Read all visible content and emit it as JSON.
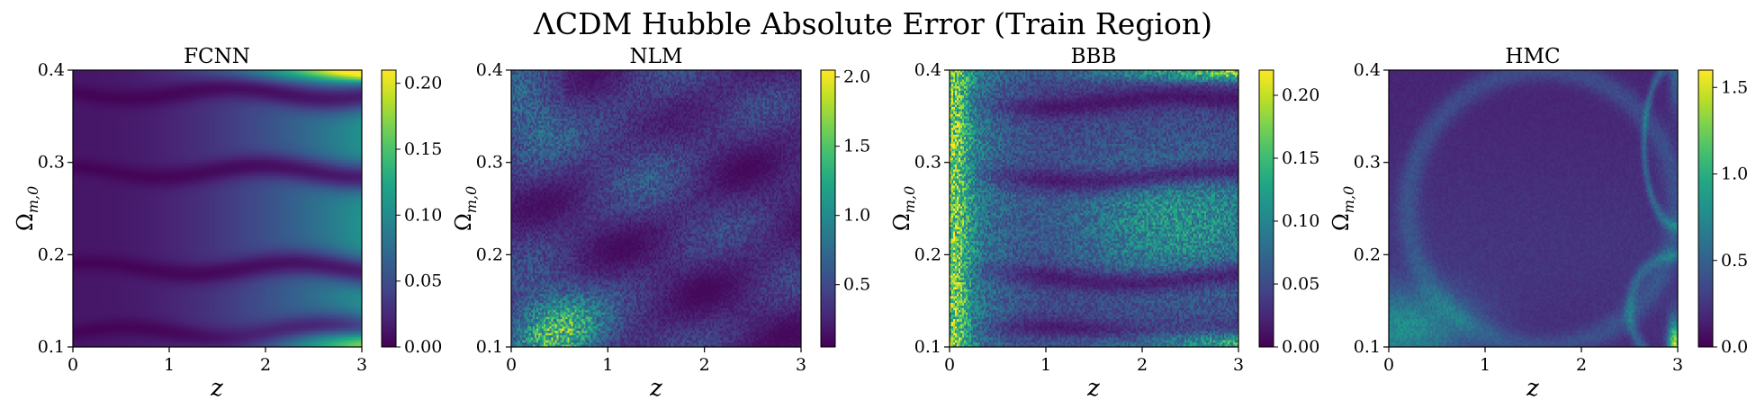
{
  "figure": {
    "title": "ΛCDM Hubble Absolute Error (Train Region)"
  },
  "colors": {
    "viridis": [
      "#440154",
      "#482475",
      "#414487",
      "#355f8d",
      "#2a788e",
      "#21918c",
      "#22a884",
      "#44bf70",
      "#7ad151",
      "#bddf26",
      "#fde725"
    ]
  },
  "chart_data": [
    {
      "type": "heatmap",
      "title": "FCNN",
      "xlabel": "z",
      "ylabel": "Ω_{m,0}",
      "xlim": [
        0,
        3
      ],
      "ylim": [
        0.1,
        0.4
      ],
      "x_ticks": [
        "0",
        "1",
        "2",
        "3"
      ],
      "y_ticks": [
        "0.1",
        "0.2",
        "0.3",
        "0.4"
      ],
      "colorbar": {
        "min": 0.0,
        "max": 0.21,
        "ticks": [
          "0.00",
          "0.05",
          "0.10",
          "0.15",
          "0.20"
        ],
        "tick_values": [
          0.0,
          0.05,
          0.1,
          0.15,
          0.2
        ]
      },
      "pattern": "smooth",
      "error_max_approx": 0.21,
      "dark_bands_omega": [
        0.115,
        0.185,
        0.29,
        0.375
      ]
    },
    {
      "type": "heatmap",
      "title": "NLM",
      "xlabel": "z",
      "ylabel": "Ω_{m,0}",
      "xlim": [
        0,
        3
      ],
      "ylim": [
        0.1,
        0.4
      ],
      "x_ticks": [
        "0",
        "1",
        "2",
        "3"
      ],
      "y_ticks": [
        "0.1",
        "0.2",
        "0.3",
        "0.4"
      ],
      "colorbar": {
        "min": 0.05,
        "max": 2.05,
        "ticks": [
          "0.5",
          "1.0",
          "1.5",
          "2.0"
        ],
        "tick_values": [
          0.5,
          1.0,
          1.5,
          2.0
        ]
      },
      "pattern": "noisy",
      "error_max_approx": 2.05,
      "hotspot": {
        "z": 0.5,
        "omega": 0.12
      }
    },
    {
      "type": "heatmap",
      "title": "BBB",
      "xlabel": "z",
      "ylabel": "Ω_{m,0}",
      "xlim": [
        0,
        3
      ],
      "ylim": [
        0.1,
        0.4
      ],
      "x_ticks": [
        "0",
        "1",
        "2",
        "3"
      ],
      "y_ticks": [
        "0.1",
        "0.2",
        "0.3",
        "0.4"
      ],
      "colorbar": {
        "min": 0.0,
        "max": 0.22,
        "ticks": [
          "0.00",
          "0.05",
          "0.10",
          "0.15",
          "0.20"
        ],
        "tick_values": [
          0.0,
          0.05,
          0.1,
          0.15,
          0.2
        ]
      },
      "pattern": "banded-noisy",
      "error_max_approx": 0.22,
      "dark_bands_omega": [
        0.115,
        0.175,
        0.285,
        0.365
      ]
    },
    {
      "type": "heatmap",
      "title": "HMC",
      "xlabel": "z",
      "ylabel": "Ω_{m,0}",
      "xlim": [
        0,
        3
      ],
      "ylim": [
        0.1,
        0.4
      ],
      "x_ticks": [
        "0",
        "1",
        "2",
        "3"
      ],
      "y_ticks": [
        "0.1",
        "0.2",
        "0.3",
        "0.4"
      ],
      "colorbar": {
        "min": 0.0,
        "max": 1.6,
        "ticks": [
          "0.0",
          "0.5",
          "1.0",
          "1.5"
        ],
        "tick_values": [
          0.0,
          0.5,
          1.0,
          1.5
        ]
      },
      "pattern": "arcs",
      "error_max_approx": 1.6
    }
  ]
}
